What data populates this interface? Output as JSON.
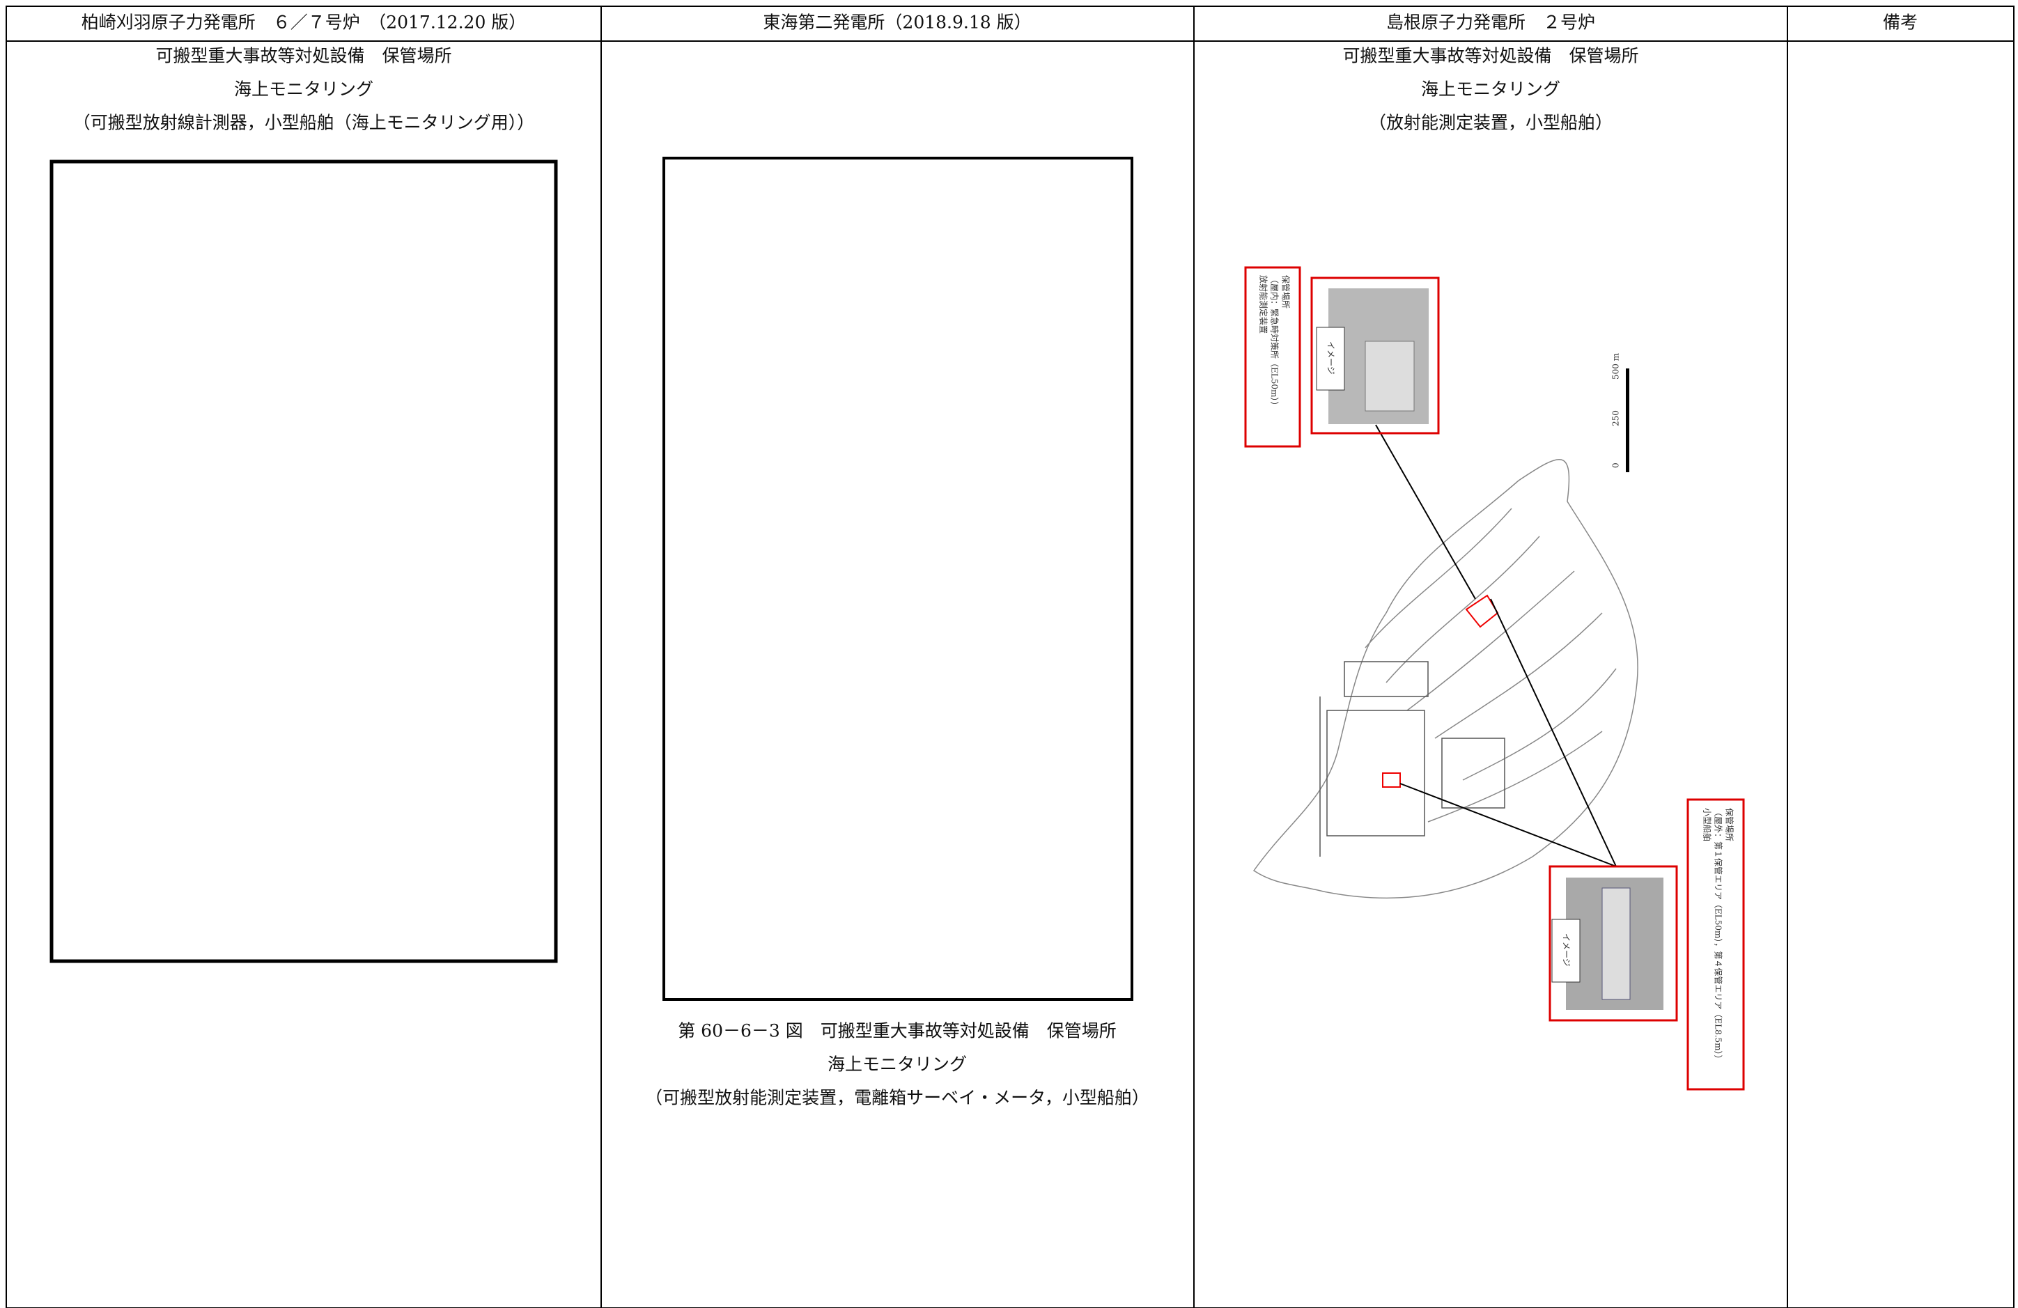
{
  "header": {
    "columns": [
      "柏崎刈羽原子力発電所　６／７号炉　（2017.12.20 版）",
      "東海第二発電所（2018.9.18 版）",
      "島根原子力発電所　２号炉",
      "備考"
    ]
  },
  "kk": {
    "lines": [
      "可搬型重大事故等対処設備　保管場所",
      "海上モニタリング",
      "（可搬型放射線計測器，小型船舶（海上モニタリング用））"
    ]
  },
  "tokai": {
    "caption": [
      "第 60－6－3 図　可搬型重大事故等対処設備　保管場所",
      "海上モニタリング",
      "（可搬型放射能測定装置，電離箱サーベイ・メータ，小型船舶）"
    ]
  },
  "shimane": {
    "lines": [
      "可搬型重大事故等対処設備　保管場所",
      "海上モニタリング",
      "（放射能測定装置，小型船舶）"
    ],
    "figure": {
      "indoor_label": [
        "保管場所",
        "（屋内：緊急時対策所（EL50m））",
        "放射能測定装置"
      ],
      "outdoor_label": [
        "保管場所",
        "（屋外：第１保管エリア（EL50m），第４保管エリア（EL8.5m））",
        "小型船舶"
      ],
      "image_tag_1": "イメージ",
      "image_tag_2": "イメージ",
      "scale": [
        "0",
        "250",
        "500 m"
      ]
    }
  }
}
